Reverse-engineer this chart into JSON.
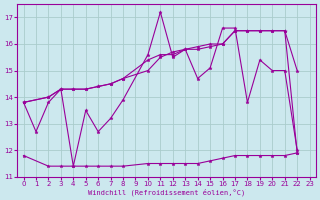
{
  "background_color": "#cce8ee",
  "line_color": "#990099",
  "grid_color": "#aacccc",
  "xlabel": "Windchill (Refroidissement éolien,°C)",
  "xlim": [
    -0.5,
    23.5
  ],
  "ylim": [
    11,
    17.5
  ],
  "yticks": [
    11,
    12,
    13,
    14,
    15,
    16,
    17
  ],
  "xticks": [
    0,
    1,
    2,
    3,
    4,
    5,
    6,
    7,
    8,
    9,
    10,
    11,
    12,
    13,
    14,
    15,
    16,
    17,
    18,
    19,
    20,
    21,
    22,
    23
  ],
  "series": [
    {
      "x": [
        0,
        1,
        2,
        3,
        4,
        5,
        6,
        7,
        8,
        10,
        11,
        12,
        13,
        14,
        15,
        16,
        17,
        18,
        19,
        20,
        21,
        22
      ],
      "y": [
        13.8,
        12.7,
        13.8,
        14.3,
        11.4,
        13.5,
        12.7,
        13.2,
        13.9,
        15.6,
        17.2,
        15.5,
        15.8,
        14.7,
        15.1,
        16.6,
        16.6,
        13.8,
        15.4,
        15.0,
        15.0,
        12.0
      ]
    },
    {
      "x": [
        0,
        2,
        3,
        4,
        5,
        6,
        7,
        8,
        10,
        11,
        12,
        13,
        14,
        15,
        16,
        17,
        18,
        19,
        20,
        21,
        22
      ],
      "y": [
        13.8,
        14.0,
        14.3,
        14.3,
        14.3,
        14.4,
        14.5,
        14.7,
        15.4,
        15.6,
        15.6,
        15.8,
        15.8,
        15.9,
        16.0,
        16.5,
        16.5,
        16.5,
        16.5,
        16.5,
        15.0
      ]
    },
    {
      "x": [
        0,
        2,
        3,
        4,
        5,
        6,
        7,
        8,
        10,
        11,
        12,
        13,
        14,
        15,
        16,
        17,
        18,
        19,
        20,
        21,
        22
      ],
      "y": [
        13.8,
        14.0,
        14.3,
        14.3,
        14.3,
        14.4,
        14.5,
        14.7,
        15.0,
        15.5,
        15.7,
        15.8,
        15.9,
        16.0,
        16.0,
        16.5,
        16.5,
        16.5,
        16.5,
        16.5,
        11.9
      ]
    },
    {
      "x": [
        0,
        2,
        3,
        4,
        5,
        6,
        7,
        8,
        10,
        11,
        12,
        13,
        14,
        15,
        16,
        17,
        18,
        19,
        20,
        21,
        22
      ],
      "y": [
        11.8,
        11.4,
        11.4,
        11.4,
        11.4,
        11.4,
        11.4,
        11.4,
        11.5,
        11.5,
        11.5,
        11.5,
        11.5,
        11.6,
        11.7,
        11.8,
        11.8,
        11.8,
        11.8,
        11.8,
        11.9
      ]
    }
  ]
}
